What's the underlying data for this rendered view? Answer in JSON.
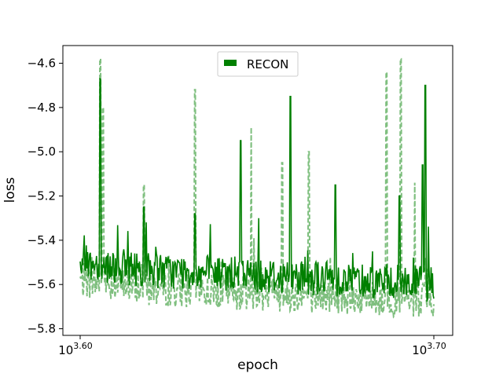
{
  "chart_data": {
    "type": "line",
    "title": "",
    "xlabel": "epoch",
    "ylabel": "loss",
    "x_scale": "log",
    "x_ticks": [
      {
        "exponent": "3.60",
        "base": "10",
        "value": 3981.07
      },
      {
        "exponent": "3.70",
        "base": "10",
        "value": 5011.87
      }
    ],
    "xlim": [
      3981.07,
      5011.87
    ],
    "ylim": [
      -5.83,
      -4.52
    ],
    "y_ticks": [
      -5.8,
      -5.6,
      -5.4,
      -5.2,
      -5.0,
      -4.8,
      -4.6
    ],
    "y_tick_labels": [
      "−5.8",
      "−5.6",
      "−5.4",
      "−5.2",
      "−5.0",
      "−4.8",
      "−4.6"
    ],
    "grid": false,
    "legend_position": "upper center",
    "series": [
      {
        "name": "RECON",
        "color": "#008000",
        "style": "solid",
        "baseline": -5.55,
        "noise": 0.05,
        "trend": [
          [
            3981.07,
            -5.5
          ],
          [
            4200,
            -5.54
          ],
          [
            4500,
            -5.56
          ],
          [
            4800,
            -5.58
          ],
          [
            5011.87,
            -5.6
          ]
        ],
        "spikes": [
          [
            4034,
            -4.67
          ],
          [
            4150,
            -5.25
          ],
          [
            4290,
            -5.28
          ],
          [
            4420,
            -4.95
          ],
          [
            4565,
            -4.75
          ],
          [
            4700,
            -5.15
          ],
          [
            4900,
            -5.2
          ],
          [
            4975,
            -5.06
          ],
          [
            4985,
            -4.7
          ]
        ]
      },
      {
        "name": "",
        "color": "#7fbf7f",
        "style": "dashed",
        "baseline": -5.62,
        "noise": 0.05,
        "trend": [
          [
            3981.07,
            -5.58
          ],
          [
            4200,
            -5.62
          ],
          [
            4500,
            -5.64
          ],
          [
            4800,
            -5.66
          ],
          [
            5011.87,
            -5.68
          ]
        ],
        "spikes": [
          [
            4034,
            -4.58
          ],
          [
            4040,
            -4.8
          ],
          [
            4150,
            -5.15
          ],
          [
            4290,
            -4.72
          ],
          [
            4450,
            -4.89
          ],
          [
            4540,
            -5.05
          ],
          [
            4620,
            -5.0
          ],
          [
            4860,
            -4.64
          ],
          [
            4905,
            -4.58
          ],
          [
            4950,
            -5.14
          ]
        ]
      }
    ]
  }
}
